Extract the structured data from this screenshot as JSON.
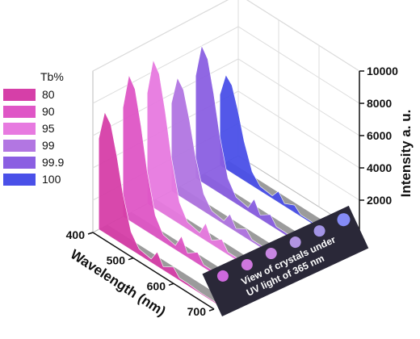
{
  "chart_data": {
    "type": "waterfall3d",
    "x": [
      400,
      415,
      430,
      445,
      460,
      480,
      500,
      530,
      545,
      560,
      585,
      600,
      620,
      650,
      700
    ],
    "series": [
      {
        "name": "80",
        "color": "#d63fa8",
        "values": [
          5625,
          7500,
          6975,
          5250,
          3150,
          1125,
          375,
          225,
          900,
          225,
          600,
          150,
          150,
          75,
          75
        ]
      },
      {
        "name": "90",
        "color": "#df56c6",
        "values": [
          6750,
          9000,
          8370,
          6300,
          3780,
          1350,
          450,
          270,
          1080,
          270,
          720,
          180,
          180,
          90,
          90
        ]
      },
      {
        "name": "95",
        "color": "#e77ae0",
        "values": [
          6860,
          9150,
          8510,
          6400,
          3840,
          1370,
          460,
          270,
          1100,
          270,
          730,
          180,
          180,
          90,
          90
        ]
      },
      {
        "name": "99",
        "color": "#b276e2",
        "values": [
          5440,
          7250,
          6740,
          5080,
          3050,
          1090,
          360,
          220,
          870,
          220,
          580,
          150,
          150,
          70,
          70
        ]
      },
      {
        "name": "99.9",
        "color": "#8b5fe2",
        "values": [
          6340,
          8450,
          7860,
          5920,
          3550,
          1270,
          420,
          250,
          1010,
          250,
          680,
          170,
          170,
          80,
          80
        ]
      },
      {
        "name": "100",
        "color": "#4a50e8",
        "values": [
          4390,
          5850,
          5440,
          4100,
          2460,
          880,
          290,
          180,
          700,
          180,
          470,
          120,
          120,
          60,
          60
        ]
      }
    ],
    "legend_title": "Tb%",
    "x_label": "Wavelength (nm)",
    "y_label": "Intensity a. u.",
    "xlim": [
      400,
      700
    ],
    "xticks": [
      400,
      500,
      600,
      700
    ],
    "ylim": [
      0,
      10000
    ],
    "yticks": [
      2000,
      4000,
      6000,
      8000,
      10000
    ],
    "grid": true,
    "annotation": [
      "View of crystals under",
      "UV light of 365 nm"
    ]
  }
}
